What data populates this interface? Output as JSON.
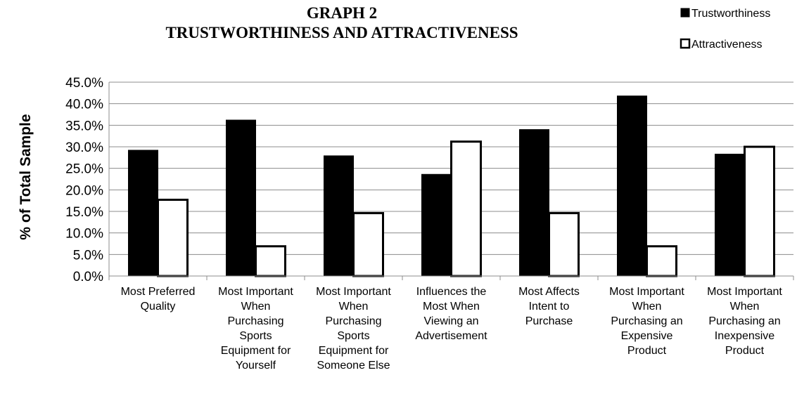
{
  "chart_data": {
    "type": "bar",
    "title_lines": [
      "GRAPH 2",
      "TRUSTWORTHINESS AND ATTRACTIVENESS"
    ],
    "ylabel": "% of Total Sample",
    "xlabel": "",
    "ylim": [
      0,
      45
    ],
    "y_ticks": [
      "0.0%",
      "5.0%",
      "10.0%",
      "15.0%",
      "20.0%",
      "25.0%",
      "30.0%",
      "35.0%",
      "40.0%",
      "45.0%"
    ],
    "y_tick_values": [
      0,
      5,
      10,
      15,
      20,
      25,
      30,
      35,
      40,
      45
    ],
    "grid": true,
    "legend_position": "top-right",
    "categories": [
      [
        "Most Preferred",
        "Quality"
      ],
      [
        "Most Important",
        "When",
        "Purchasing",
        "Sports",
        "Equipment for",
        "Yourself"
      ],
      [
        "Most Important",
        "When",
        "Purchasing",
        "Sports",
        "Equipment for",
        "Someone Else"
      ],
      [
        "Influences the",
        "Most When",
        "Viewing an",
        "Advertisement"
      ],
      [
        "Most Affects",
        "Intent to",
        "Purchase"
      ],
      [
        "Most Important",
        "When",
        "Purchasing an",
        "Expensive",
        "Product"
      ],
      [
        "Most Important",
        "When",
        "Purchasing an",
        "Inexpensive",
        "Product"
      ]
    ],
    "series": [
      {
        "name": "Trustworthiness",
        "color": "#000000",
        "values": [
          29.2,
          36.2,
          27.9,
          23.6,
          34.0,
          41.8,
          28.3
        ]
      },
      {
        "name": "Attractiveness",
        "color": "#ffffff",
        "values": [
          17.7,
          6.9,
          14.6,
          31.2,
          14.6,
          6.9,
          30.0
        ]
      }
    ]
  }
}
